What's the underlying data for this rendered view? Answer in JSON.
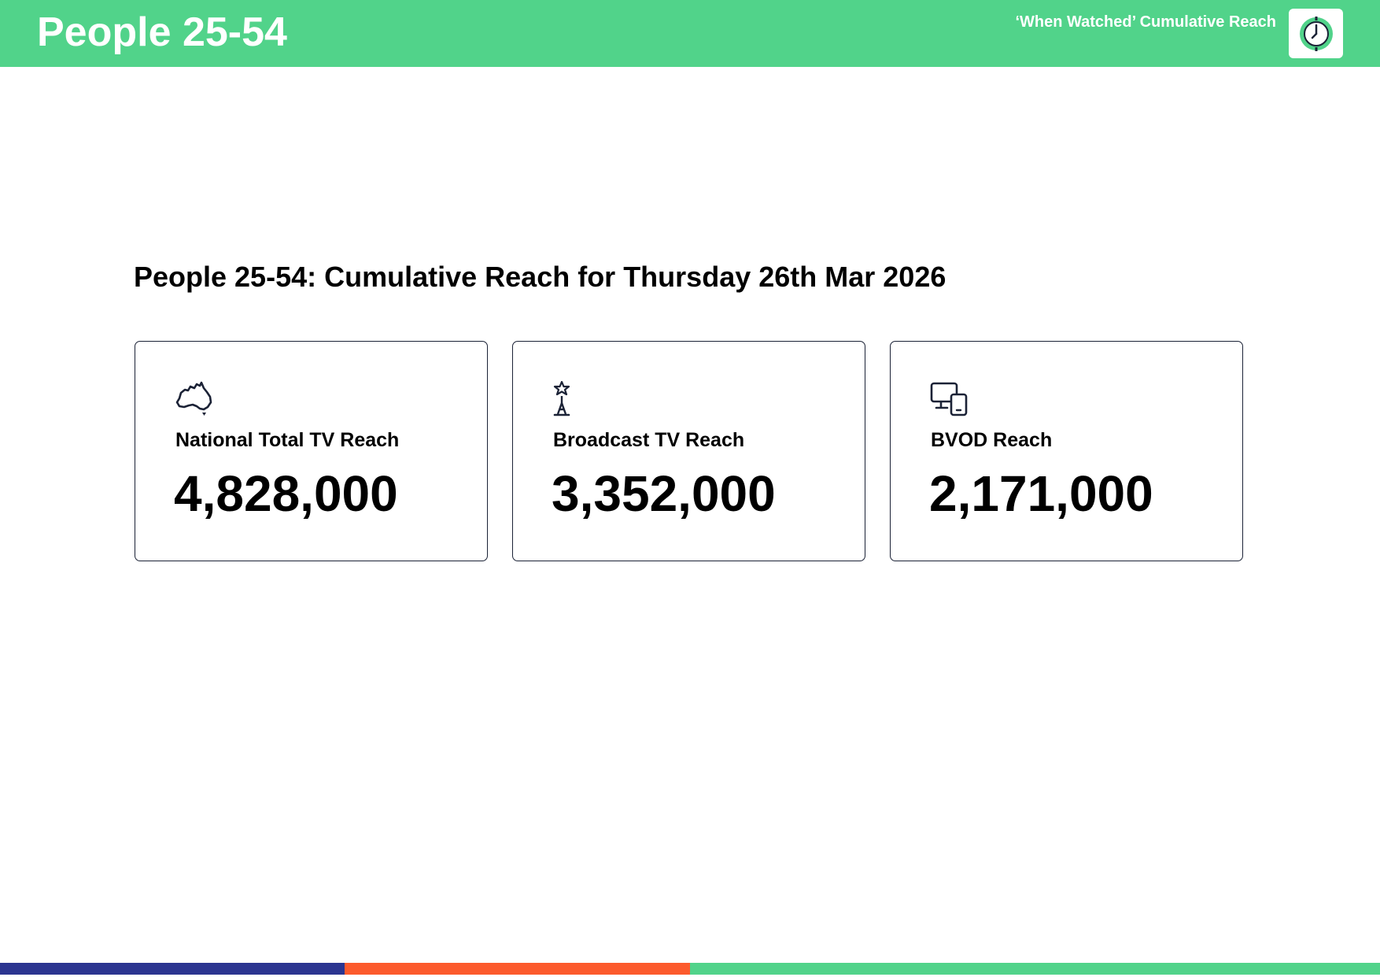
{
  "header": {
    "title": "People 25-54",
    "subtitle": "‘When Watched’ Cumulative Reach",
    "badge_icon": "clock-icon",
    "background_color": "#51d38a"
  },
  "section": {
    "title": "People 25-54: Cumulative Reach for Thursday 26th Mar 2026"
  },
  "cards": [
    {
      "icon": "australia-map-icon",
      "label": "National Total TV Reach",
      "value": "4,828,000"
    },
    {
      "icon": "broadcast-tower-icon",
      "label": "Broadcast TV Reach",
      "value": "3,352,000"
    },
    {
      "icon": "devices-icon",
      "label": "BVOD Reach",
      "value": "2,171,000"
    }
  ],
  "footer_bar": {
    "colors": [
      "#2b3590",
      "#fc5a2c",
      "#51d38a"
    ]
  }
}
